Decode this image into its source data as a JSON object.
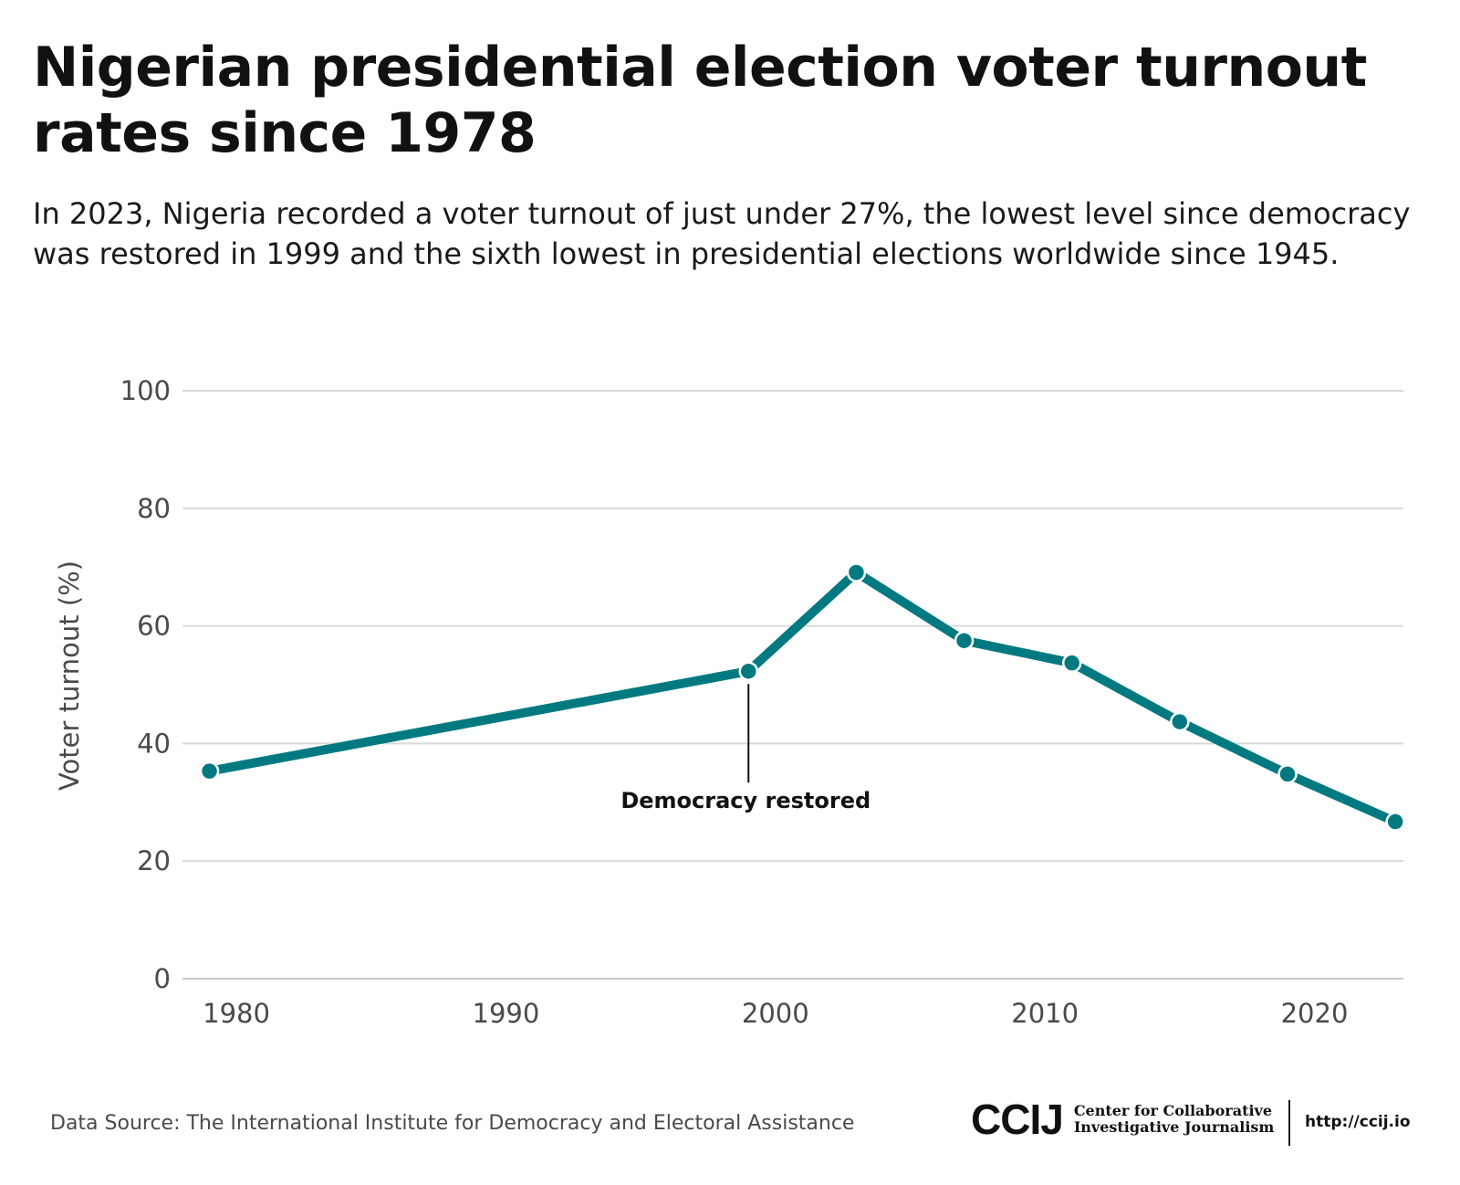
{
  "header": {
    "title": "Nigerian presidential election voter turnout rates since 1978",
    "subtitle": "In 2023, Nigeria recorded a voter turnout of just under 27%, the lowest level since democracy was restored in 1999 and the sixth lowest in presidential elections worldwide since 1945."
  },
  "chart_data": {
    "type": "line",
    "title": "Nigerian presidential election voter turnout rates since 1978",
    "xlabel": "",
    "ylabel": "Voter turnout (%)",
    "x": [
      1979,
      1999,
      2003,
      2007,
      2011,
      2015,
      2019,
      2023
    ],
    "series": [
      {
        "values": [
          35.3,
          52.3,
          69.1,
          57.5,
          53.7,
          43.7,
          34.8,
          26.7
        ]
      }
    ],
    "xlim": [
      1978,
      2023.3
    ],
    "ylim": [
      0,
      100
    ],
    "x_ticks": [
      1980,
      1990,
      2000,
      2010,
      2020
    ],
    "y_ticks": [
      0,
      20,
      40,
      60,
      80,
      100
    ],
    "grid": "horizontal",
    "line_color": "#007a80",
    "annotations": [
      {
        "x": 1999,
        "text": "Democracy restored"
      }
    ]
  },
  "footer": {
    "source": "Data Source: The International Institute for Democracy and Electoral Assistance",
    "logo_mark": "CCIJ",
    "logo_name_line1": "Center for Collaborative",
    "logo_name_line2": "Investigative Journalism",
    "url": "http://ccij.io"
  }
}
